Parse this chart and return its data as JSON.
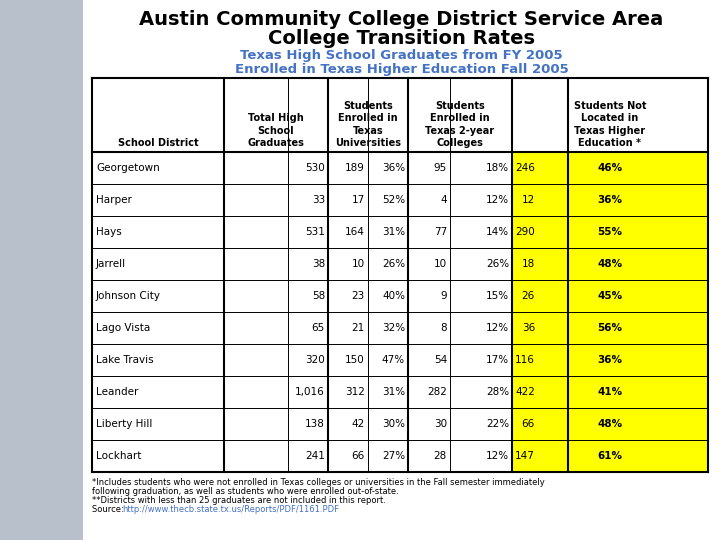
{
  "title_line1": "Austin Community College District Service Area",
  "title_line2": "College Transition Rates",
  "subtitle_line1": "Texas High School Graduates from FY 2005",
  "subtitle_line2": "Enrolled in Texas Higher Education Fall 2005",
  "bg_color": "#b8c0cc",
  "title_color": "#000000",
  "subtitle_color": "#4472c4",
  "rows": [
    [
      "Georgetown",
      "530",
      "189",
      "36%",
      "95",
      "18%",
      "246",
      "46%"
    ],
    [
      "Harper",
      "33",
      "17",
      "52%",
      "4",
      "12%",
      "12",
      "36%"
    ],
    [
      "Hays",
      "531",
      "164",
      "31%",
      "77",
      "14%",
      "290",
      "55%"
    ],
    [
      "Jarrell",
      "38",
      "10",
      "26%",
      "10",
      "26%",
      "18",
      "48%"
    ],
    [
      "Johnson City",
      "58",
      "23",
      "40%",
      "9",
      "15%",
      "26",
      "45%"
    ],
    [
      "Lago Vista",
      "65",
      "21",
      "32%",
      "8",
      "12%",
      "36",
      "56%"
    ],
    [
      "Lake Travis",
      "320",
      "150",
      "47%",
      "54",
      "17%",
      "116",
      "36%"
    ],
    [
      "Leander",
      "1,016",
      "312",
      "31%",
      "282",
      "28%",
      "422",
      "41%"
    ],
    [
      "Liberty Hill",
      "138",
      "42",
      "30%",
      "30",
      "22%",
      "66",
      "48%"
    ],
    [
      "Lockhart",
      "241",
      "66",
      "27%",
      "28",
      "12%",
      "147",
      "61%"
    ]
  ],
  "footnote1": "*Includes students who were not enrolled in Texas colleges or universities in the Fall semester immediately",
  "footnote2": "following graduation, as well as students who were enrolled out-of-state.",
  "footnote3": "**Districts with less than 25 graduates are not included in this report.",
  "footnote4_prefix": "Source:  ",
  "source_url": "http://www.thecb.state.tx.us/Reports/PDF/1161.PDF",
  "highlight_color": "#ffff00",
  "white_bg": "#ffffff",
  "border_color": "#000000"
}
